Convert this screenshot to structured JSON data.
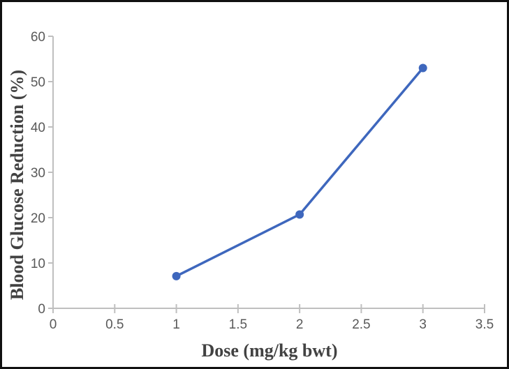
{
  "figure": {
    "background_color": "#FFFFFF",
    "frame_border_color": "#111111"
  },
  "chart_data": {
    "type": "line",
    "title": "",
    "xlabel": "Dose (mg/kg bwt)",
    "ylabel": "Blood Glucose Reduction (%)",
    "x": [
      1,
      2,
      3
    ],
    "y": [
      7.1,
      20.7,
      53
    ],
    "xlim": [
      0,
      3.5
    ],
    "ylim": [
      0,
      60
    ],
    "x_ticks": [
      "0",
      "0.5",
      "1",
      "1.5",
      "2",
      "2.5",
      "3",
      "3.5"
    ],
    "y_ticks": [
      "0",
      "10",
      "20",
      "30",
      "40",
      "50",
      "60"
    ],
    "grid": false,
    "legend": "none",
    "marker": "circle",
    "line_color": "#3E67BD",
    "axis_color": "#BFBFBF",
    "tick_label_color": "#595959",
    "axis_title_color": "#424242"
  }
}
